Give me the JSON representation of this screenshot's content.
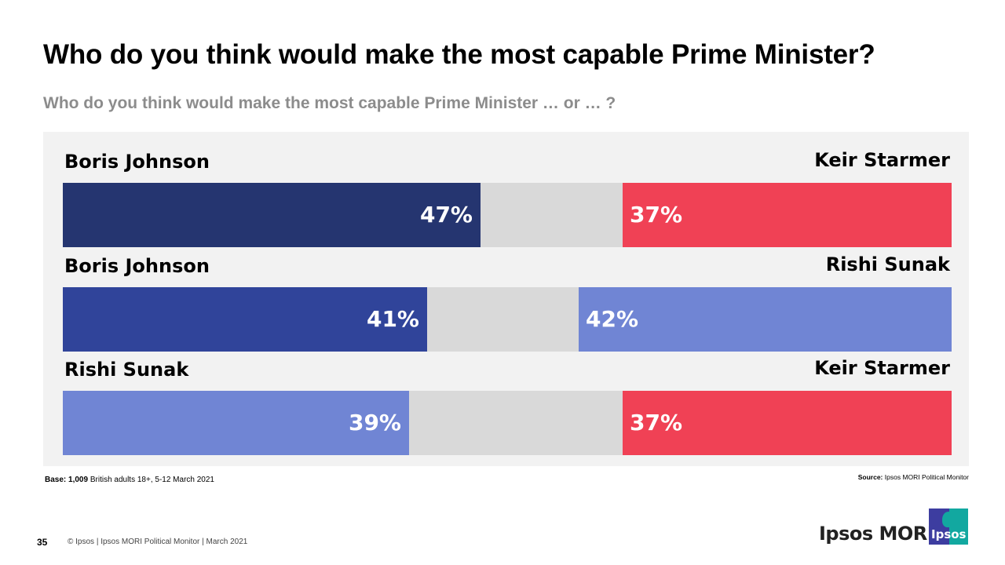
{
  "title": "Who do you think would make the most capable Prime Minister?",
  "subtitle": "Who do you think would make the most capable Prime Minister … or … ?",
  "chart_data": {
    "type": "bar",
    "subtype": "diverging-stacked-horizontal",
    "title": "Who do you think would make the most capable Prime Minister?",
    "xlim": [
      0,
      100
    ],
    "unit": "%",
    "rows": [
      {
        "left_label": "Boris Johnson",
        "left_value": 47,
        "left_color": "#253570",
        "right_label": "Keir Starmer",
        "right_value": 37,
        "right_color": "#f04155"
      },
      {
        "left_label": "Boris Johnson",
        "left_value": 41,
        "left_color": "#30449a",
        "right_label": "Rishi Sunak",
        "right_value": 42,
        "right_color": "#7085d4"
      },
      {
        "left_label": "Rishi Sunak",
        "left_value": 39,
        "left_color": "#7085d4",
        "right_label": "Keir Starmer",
        "right_value": 37,
        "right_color": "#f04155"
      }
    ],
    "remainder_color": "#d9d9d9"
  },
  "notes": {
    "base_label": "Base:",
    "base_count": "1,009",
    "base_text": "British adults 18+,  5-12 March 2021",
    "source_label": "Source:",
    "source_text": "Ipsos MORI Political Monitor"
  },
  "footer": {
    "page_number": "35",
    "text": "© Ipsos | Ipsos MORI  Political  Monitor | March 2021",
    "brand": "Ipsos MORI",
    "logo_text": "Ipsos"
  }
}
